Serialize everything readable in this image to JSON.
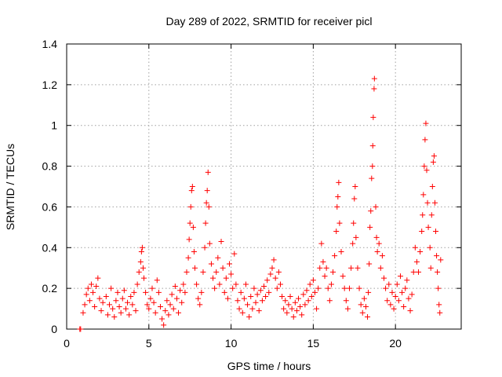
{
  "chart_data": {
    "type": "scatter",
    "title": "Day 289 of 2022, SRMTID for receiver picl",
    "xlabel": "GPS time / hours",
    "ylabel": "SRMTID / TECUs",
    "xlim": [
      0,
      24
    ],
    "ylim": [
      0,
      1.4
    ],
    "xticks": [
      0,
      5,
      10,
      15,
      20
    ],
    "xtick_labels": [
      "0",
      "5",
      "10",
      "15",
      "20"
    ],
    "yticks": [
      0,
      0.2,
      0.4,
      0.6,
      0.8,
      1.0,
      1.2,
      1.4
    ],
    "ytick_labels": [
      "0",
      "0.2",
      "0.4",
      "0.6",
      "0.8",
      "1",
      "1.2",
      "1.4"
    ],
    "grid": true,
    "marker": "+",
    "color": "#ff0000",
    "series": [
      {
        "name": "SRMTID",
        "points": [
          [
            0.8,
            0.0
          ],
          [
            0.85,
            0.0
          ],
          [
            1.0,
            0.08
          ],
          [
            1.1,
            0.12
          ],
          [
            1.2,
            0.17
          ],
          [
            1.3,
            0.2
          ],
          [
            1.4,
            0.14
          ],
          [
            1.5,
            0.22
          ],
          [
            1.6,
            0.18
          ],
          [
            1.7,
            0.11
          ],
          [
            1.8,
            0.21
          ],
          [
            1.9,
            0.25
          ],
          [
            2.0,
            0.15
          ],
          [
            2.1,
            0.09
          ],
          [
            2.2,
            0.13
          ],
          [
            2.4,
            0.16
          ],
          [
            2.5,
            0.07
          ],
          [
            2.6,
            0.12
          ],
          [
            2.7,
            0.2
          ],
          [
            2.8,
            0.1
          ],
          [
            2.9,
            0.06
          ],
          [
            3.0,
            0.14
          ],
          [
            3.1,
            0.18
          ],
          [
            3.2,
            0.11
          ],
          [
            3.3,
            0.08
          ],
          [
            3.4,
            0.15
          ],
          [
            3.5,
            0.19
          ],
          [
            3.6,
            0.1
          ],
          [
            3.7,
            0.13
          ],
          [
            3.8,
            0.07
          ],
          [
            3.9,
            0.16
          ],
          [
            4.0,
            0.12
          ],
          [
            4.1,
            0.18
          ],
          [
            4.2,
            0.09
          ],
          [
            4.3,
            0.22
          ],
          [
            4.4,
            0.28
          ],
          [
            4.5,
            0.33
          ],
          [
            4.55,
            0.38
          ],
          [
            4.6,
            0.4
          ],
          [
            4.65,
            0.3
          ],
          [
            4.7,
            0.25
          ],
          [
            4.8,
            0.18
          ],
          [
            4.9,
            0.12
          ],
          [
            5.0,
            0.1
          ],
          [
            5.1,
            0.15
          ],
          [
            5.2,
            0.2
          ],
          [
            5.3,
            0.13
          ],
          [
            5.4,
            0.08
          ],
          [
            5.5,
            0.24
          ],
          [
            5.6,
            0.18
          ],
          [
            5.7,
            0.11
          ],
          [
            5.8,
            0.05
          ],
          [
            5.9,
            0.02
          ],
          [
            6.0,
            0.09
          ],
          [
            6.1,
            0.14
          ],
          [
            6.2,
            0.07
          ],
          [
            6.3,
            0.12
          ],
          [
            6.4,
            0.17
          ],
          [
            6.5,
            0.1
          ],
          [
            6.6,
            0.21
          ],
          [
            6.7,
            0.15
          ],
          [
            6.8,
            0.08
          ],
          [
            6.9,
            0.19
          ],
          [
            7.0,
            0.13
          ],
          [
            7.1,
            0.22
          ],
          [
            7.2,
            0.18
          ],
          [
            7.3,
            0.28
          ],
          [
            7.4,
            0.35
          ],
          [
            7.45,
            0.44
          ],
          [
            7.5,
            0.52
          ],
          [
            7.55,
            0.6
          ],
          [
            7.6,
            0.68
          ],
          [
            7.65,
            0.7
          ],
          [
            7.7,
            0.5
          ],
          [
            7.75,
            0.38
          ],
          [
            7.8,
            0.3
          ],
          [
            7.9,
            0.22
          ],
          [
            8.0,
            0.15
          ],
          [
            8.1,
            0.12
          ],
          [
            8.2,
            0.18
          ],
          [
            8.3,
            0.28
          ],
          [
            8.4,
            0.4
          ],
          [
            8.45,
            0.52
          ],
          [
            8.5,
            0.62
          ],
          [
            8.55,
            0.68
          ],
          [
            8.6,
            0.77
          ],
          [
            8.65,
            0.6
          ],
          [
            8.7,
            0.42
          ],
          [
            8.8,
            0.32
          ],
          [
            8.9,
            0.25
          ],
          [
            9.0,
            0.2
          ],
          [
            9.1,
            0.28
          ],
          [
            9.2,
            0.35
          ],
          [
            9.3,
            0.22
          ],
          [
            9.4,
            0.43
          ],
          [
            9.5,
            0.3
          ],
          [
            9.6,
            0.18
          ],
          [
            9.7,
            0.25
          ],
          [
            9.8,
            0.15
          ],
          [
            9.9,
            0.32
          ],
          [
            10.0,
            0.27
          ],
          [
            10.1,
            0.2
          ],
          [
            10.2,
            0.37
          ],
          [
            10.3,
            0.22
          ],
          [
            10.4,
            0.14
          ],
          [
            10.5,
            0.1
          ],
          [
            10.6,
            0.18
          ],
          [
            10.7,
            0.08
          ],
          [
            10.8,
            0.15
          ],
          [
            10.9,
            0.22
          ],
          [
            11.0,
            0.12
          ],
          [
            11.1,
            0.06
          ],
          [
            11.2,
            0.16
          ],
          [
            11.3,
            0.1
          ],
          [
            11.4,
            0.2
          ],
          [
            11.5,
            0.13
          ],
          [
            11.6,
            0.17
          ],
          [
            11.7,
            0.09
          ],
          [
            11.8,
            0.19
          ],
          [
            11.9,
            0.14
          ],
          [
            12.0,
            0.21
          ],
          [
            12.1,
            0.16
          ],
          [
            12.2,
            0.24
          ],
          [
            12.3,
            0.18
          ],
          [
            12.4,
            0.27
          ],
          [
            12.5,
            0.3
          ],
          [
            12.6,
            0.34
          ],
          [
            12.7,
            0.25
          ],
          [
            12.8,
            0.2
          ],
          [
            12.9,
            0.28
          ],
          [
            13.0,
            0.22
          ],
          [
            13.1,
            0.16
          ],
          [
            13.2,
            0.1
          ],
          [
            13.3,
            0.14
          ],
          [
            13.4,
            0.08
          ],
          [
            13.5,
            0.12
          ],
          [
            13.6,
            0.16
          ],
          [
            13.7,
            0.1
          ],
          [
            13.8,
            0.06
          ],
          [
            13.9,
            0.13
          ],
          [
            14.0,
            0.09
          ],
          [
            14.1,
            0.15
          ],
          [
            14.2,
            0.11
          ],
          [
            14.3,
            0.07
          ],
          [
            14.4,
            0.17
          ],
          [
            14.5,
            0.12
          ],
          [
            14.6,
            0.19
          ],
          [
            14.7,
            0.14
          ],
          [
            14.8,
            0.22
          ],
          [
            14.9,
            0.16
          ],
          [
            15.0,
            0.24
          ],
          [
            15.1,
            0.18
          ],
          [
            15.2,
            0.1
          ],
          [
            15.3,
            0.2
          ],
          [
            15.4,
            0.3
          ],
          [
            15.5,
            0.42
          ],
          [
            15.6,
            0.33
          ],
          [
            15.7,
            0.26
          ],
          [
            15.8,
            0.3
          ],
          [
            15.9,
            0.2
          ],
          [
            16.0,
            0.14
          ],
          [
            16.1,
            0.22
          ],
          [
            16.2,
            0.28
          ],
          [
            16.3,
            0.36
          ],
          [
            16.4,
            0.48
          ],
          [
            16.45,
            0.6
          ],
          [
            16.5,
            0.65
          ],
          [
            16.55,
            0.72
          ],
          [
            16.6,
            0.52
          ],
          [
            16.7,
            0.38
          ],
          [
            16.8,
            0.26
          ],
          [
            16.9,
            0.2
          ],
          [
            17.0,
            0.14
          ],
          [
            17.1,
            0.1
          ],
          [
            17.2,
            0.2
          ],
          [
            17.3,
            0.3
          ],
          [
            17.4,
            0.42
          ],
          [
            17.45,
            0.52
          ],
          [
            17.5,
            0.64
          ],
          [
            17.55,
            0.7
          ],
          [
            17.6,
            0.45
          ],
          [
            17.7,
            0.3
          ],
          [
            17.8,
            0.2
          ],
          [
            17.9,
            0.12
          ],
          [
            18.0,
            0.08
          ],
          [
            18.1,
            0.15
          ],
          [
            18.2,
            0.11
          ],
          [
            18.3,
            0.06
          ],
          [
            18.35,
            0.18
          ],
          [
            18.4,
            0.32
          ],
          [
            18.45,
            0.5
          ],
          [
            18.5,
            0.58
          ],
          [
            18.55,
            0.74
          ],
          [
            18.6,
            0.8
          ],
          [
            18.62,
            0.9
          ],
          [
            18.65,
            1.04
          ],
          [
            18.7,
            1.18
          ],
          [
            18.72,
            1.23
          ],
          [
            18.8,
            0.6
          ],
          [
            18.85,
            0.45
          ],
          [
            18.9,
            0.38
          ],
          [
            19.0,
            0.42
          ],
          [
            19.1,
            0.3
          ],
          [
            19.2,
            0.36
          ],
          [
            19.3,
            0.25
          ],
          [
            19.4,
            0.2
          ],
          [
            19.5,
            0.14
          ],
          [
            19.6,
            0.22
          ],
          [
            19.7,
            0.12
          ],
          [
            19.8,
            0.18
          ],
          [
            19.9,
            0.1
          ],
          [
            20.0,
            0.16
          ],
          [
            20.1,
            0.22
          ],
          [
            20.2,
            0.14
          ],
          [
            20.3,
            0.26
          ],
          [
            20.4,
            0.18
          ],
          [
            20.5,
            0.11
          ],
          [
            20.6,
            0.2
          ],
          [
            20.7,
            0.24
          ],
          [
            20.8,
            0.15
          ],
          [
            20.9,
            0.09
          ],
          [
            21.0,
            0.17
          ],
          [
            21.1,
            0.28
          ],
          [
            21.2,
            0.4
          ],
          [
            21.3,
            0.33
          ],
          [
            21.4,
            0.28
          ],
          [
            21.5,
            0.38
          ],
          [
            21.6,
            0.48
          ],
          [
            21.65,
            0.56
          ],
          [
            21.7,
            0.66
          ],
          [
            21.75,
            0.8
          ],
          [
            21.8,
            0.93
          ],
          [
            21.85,
            1.01
          ],
          [
            21.9,
            0.78
          ],
          [
            21.95,
            0.62
          ],
          [
            22.0,
            0.5
          ],
          [
            22.1,
            0.4
          ],
          [
            22.15,
            0.3
          ],
          [
            22.2,
            0.56
          ],
          [
            22.25,
            0.7
          ],
          [
            22.3,
            0.82
          ],
          [
            22.35,
            0.85
          ],
          [
            22.4,
            0.62
          ],
          [
            22.45,
            0.48
          ],
          [
            22.5,
            0.36
          ],
          [
            22.55,
            0.28
          ],
          [
            22.6,
            0.2
          ],
          [
            22.65,
            0.12
          ],
          [
            22.7,
            0.08
          ],
          [
            22.75,
            0.34
          ]
        ]
      }
    ]
  }
}
